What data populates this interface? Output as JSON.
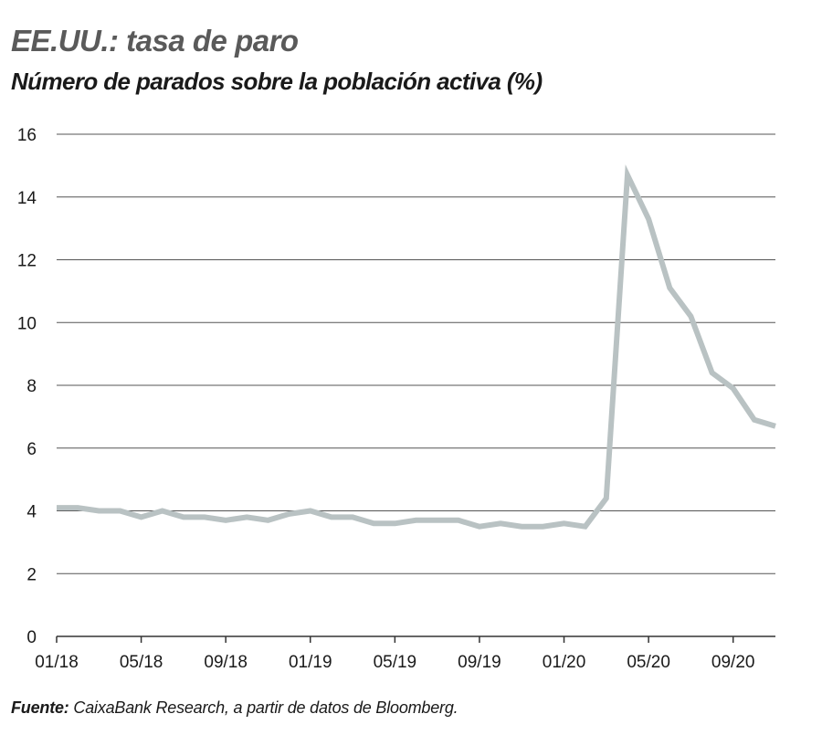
{
  "title": "EE.UU.: tasa de paro",
  "subtitle": "Número de parados sobre la población activa (%)",
  "source": {
    "label": "Fuente:",
    "text": " CaixaBank Research, a partir de datos de Bloomberg."
  },
  "colors": {
    "line": "#b9c2c3",
    "gridline": "#555555",
    "title": "#5a5a5a",
    "text": "#1a1a1a"
  },
  "chart_data": {
    "type": "line",
    "title": "EE.UU.: tasa de paro",
    "subtitle": "Número de parados sobre la población activa (%)",
    "xlabel": "",
    "ylabel": "",
    "ylim": [
      0,
      16
    ],
    "yticks": [
      0,
      2,
      4,
      6,
      8,
      10,
      12,
      14,
      16
    ],
    "xtick_labels": [
      "01/18",
      "05/18",
      "09/18",
      "01/19",
      "05/19",
      "09/19",
      "01/20",
      "05/20",
      "09/20"
    ],
    "grid": true,
    "legend": "none",
    "series": [
      {
        "x": [
          "01/18",
          "02/18",
          "03/18",
          "04/18",
          "05/18",
          "06/18",
          "07/18",
          "08/18",
          "09/18",
          "10/18",
          "11/18",
          "12/18",
          "01/19",
          "02/19",
          "03/19",
          "04/19",
          "05/19",
          "06/19",
          "07/19",
          "08/19",
          "09/19",
          "10/19",
          "11/19",
          "12/19",
          "01/20",
          "02/20",
          "03/20",
          "04/20",
          "05/20",
          "06/20",
          "07/20",
          "08/20",
          "09/20",
          "10/20",
          "11/20"
        ],
        "values": [
          4.1,
          4.1,
          4.0,
          4.0,
          3.8,
          4.0,
          3.8,
          3.8,
          3.7,
          3.8,
          3.7,
          3.9,
          4.0,
          3.8,
          3.8,
          3.6,
          3.6,
          3.7,
          3.7,
          3.7,
          3.5,
          3.6,
          3.5,
          3.5,
          3.6,
          3.5,
          4.4,
          14.7,
          13.3,
          11.1,
          10.2,
          8.4,
          7.9,
          6.9,
          6.7
        ]
      }
    ]
  }
}
